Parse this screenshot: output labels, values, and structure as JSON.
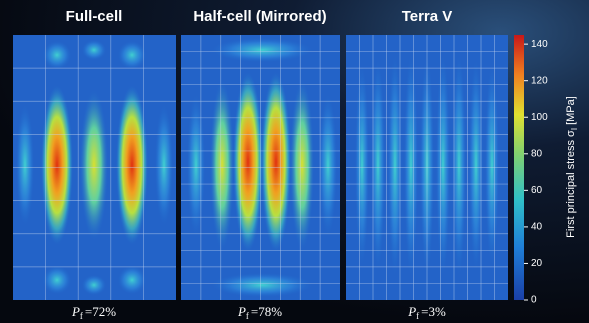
{
  "panels": [
    {
      "title": "Full-cell",
      "failure": {
        "symbol": "P",
        "subscript": "f",
        "text": "=72%"
      }
    },
    {
      "title": "Half-cell (Mirrored)",
      "failure": {
        "symbol": "P",
        "subscript": "f",
        "text": "=78%"
      }
    },
    {
      "title": "Terra V",
      "failure": {
        "symbol": "P",
        "subscript": "f",
        "text": "=3%"
      }
    }
  ],
  "colorbar": {
    "label": "First principal stress σ",
    "label_subscript": "I",
    "unit": "[MPa]",
    "lim": [
      0,
      145
    ],
    "ticks": [
      0,
      20,
      40,
      60,
      80,
      100,
      120,
      140
    ]
  }
}
